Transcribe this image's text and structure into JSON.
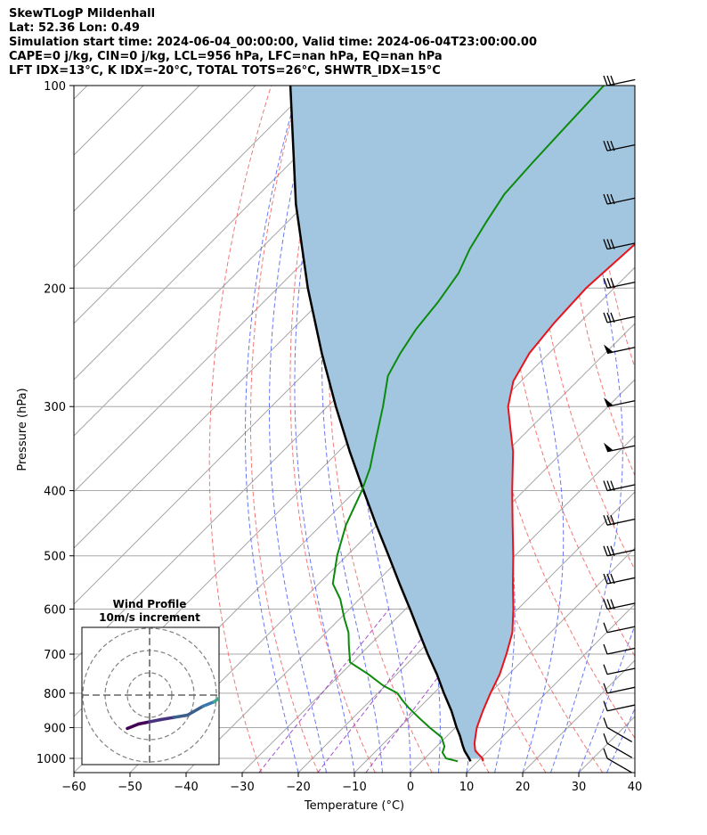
{
  "header": {
    "line1": "SkewTLogP Mildenhall",
    "line2": "Lat: 52.36   Lon: 0.49",
    "line3": "Simulation start time: 2024-06-04_00:00:00, Valid time: 2024-06-04T23:00:00.00",
    "line4": "CAPE=0 j/kg, CIN=0 j/kg, LCL=956 hPa, LFC=nan hPa, EQ=nan hPa",
    "line5": "LFT IDX=13°C, K IDX=-20°C, TOTAL TOTS=26°C, SHWTR_IDX=15°C"
  },
  "chart_data": {
    "type": "line",
    "title": "SkewTLogP Mildenhall",
    "xlabel": "Temperature (°C)",
    "ylabel": "Pressure (hPa)",
    "xlim": [
      -60,
      40
    ],
    "ylim": [
      1050,
      100
    ],
    "y_scale": "log",
    "grid": true,
    "x_ticks": [
      -60,
      -50,
      -40,
      -30,
      -20,
      -10,
      0,
      10,
      20,
      30,
      40
    ],
    "x_tick_labels": [
      "−60",
      "−50",
      "−40",
      "−30",
      "−20",
      "−10",
      "0",
      "10",
      "20",
      "30",
      "40"
    ],
    "y_ticks": [
      1000,
      900,
      800,
      700,
      600,
      500,
      400,
      300,
      200,
      100
    ],
    "y_tick_labels": [
      "1000",
      "900",
      "800",
      "700",
      "600",
      "500",
      "400",
      "300",
      "200",
      "100"
    ],
    "colors": {
      "temperature": "#e8141c",
      "dewpoint": "#0b8a0b",
      "parcel": "#000000",
      "cape_fill": "#a3c6e0",
      "dry_adiabat": "#f06060",
      "moist_adiabat": "#4f5ff2",
      "mixing_ratio": "#9b3fc4",
      "isotherm": "#a8a8a8"
    },
    "series": [
      {
        "key": "temperature",
        "points": [
          [
            1010,
            10.9
          ],
          [
            1000,
            10.3
          ],
          [
            975,
            7.7
          ],
          [
            950,
            6.2
          ],
          [
            925,
            5.0
          ],
          [
            900,
            3.8
          ],
          [
            850,
            1.9
          ],
          [
            800,
            0.1
          ],
          [
            750,
            -1.6
          ],
          [
            700,
            -4.0
          ],
          [
            650,
            -6.8
          ],
          [
            600,
            -10.8
          ],
          [
            550,
            -15.4
          ],
          [
            500,
            -20.3
          ],
          [
            450,
            -25.9
          ],
          [
            400,
            -32.1
          ],
          [
            350,
            -38.9
          ],
          [
            325,
            -43.2
          ],
          [
            300,
            -47.8
          ],
          [
            275,
            -51.4
          ],
          [
            250,
            -53.5
          ],
          [
            225,
            -54.5
          ],
          [
            200,
            -55.0
          ],
          [
            175,
            -54.2
          ],
          [
            150,
            -53.4
          ],
          [
            125,
            -53.0
          ],
          [
            110,
            -53.6
          ],
          [
            100,
            -54.5
          ]
        ]
      },
      {
        "key": "dewpoint",
        "points": [
          [
            1010,
            6.4
          ],
          [
            1000,
            3.8
          ],
          [
            980,
            2.1
          ],
          [
            960,
            1.4
          ],
          [
            930,
            -0.8
          ],
          [
            900,
            -4.6
          ],
          [
            870,
            -8.3
          ],
          [
            840,
            -12.0
          ],
          [
            820,
            -14.3
          ],
          [
            800,
            -16.5
          ],
          [
            780,
            -20.3
          ],
          [
            750,
            -25.0
          ],
          [
            720,
            -30.4
          ],
          [
            680,
            -33.6
          ],
          [
            650,
            -36.0
          ],
          [
            620,
            -39.2
          ],
          [
            580,
            -43.4
          ],
          [
            550,
            -47.5
          ],
          [
            500,
            -51.7
          ],
          [
            450,
            -55.6
          ],
          [
            400,
            -58.9
          ],
          [
            370,
            -61.5
          ],
          [
            340,
            -65.0
          ],
          [
            300,
            -70.1
          ],
          [
            270,
            -74.7
          ],
          [
            250,
            -76.5
          ],
          [
            230,
            -78.0
          ],
          [
            210,
            -78.9
          ],
          [
            190,
            -80.4
          ],
          [
            175,
            -82.7
          ],
          [
            160,
            -84.5
          ],
          [
            145,
            -86.3
          ],
          [
            130,
            -86.9
          ],
          [
            115,
            -87.4
          ],
          [
            100,
            -87.9
          ]
        ]
      },
      {
        "key": "parcel",
        "points": [
          [
            1010,
            8.7
          ],
          [
            1000,
            7.9
          ],
          [
            975,
            5.8
          ],
          [
            956,
            4.4
          ],
          [
            925,
            2.2
          ],
          [
            900,
            0.2
          ],
          [
            850,
            -3.7
          ],
          [
            800,
            -8.2
          ],
          [
            750,
            -12.8
          ],
          [
            700,
            -18.0
          ],
          [
            650,
            -23.4
          ],
          [
            600,
            -29.2
          ],
          [
            550,
            -35.6
          ],
          [
            500,
            -42.5
          ],
          [
            450,
            -50.2
          ],
          [
            400,
            -58.6
          ],
          [
            350,
            -68.0
          ],
          [
            300,
            -78.5
          ],
          [
            250,
            -90.5
          ],
          [
            200,
            -104.6
          ],
          [
            150,
            -121.7
          ],
          [
            100,
            -143.8
          ]
        ]
      }
    ],
    "wind_barb_pressures": [
      1000,
      950,
      900,
      850,
      800,
      750,
      700,
      650,
      600,
      550,
      500,
      450,
      400,
      350,
      300,
      250,
      225,
      200,
      175,
      150,
      125,
      100
    ],
    "hodograph": {
      "title": "Wind Profile",
      "subtitle": "10m/s increment",
      "ring_spacing_ms": 10,
      "rings": 3,
      "trace_u_v": [
        [
          -10,
          -15
        ],
        [
          -5,
          -13
        ],
        [
          0,
          -12
        ],
        [
          5,
          -11
        ],
        [
          11,
          -10
        ],
        [
          17,
          -9
        ],
        [
          24,
          -5
        ],
        [
          29,
          -3
        ],
        [
          33,
          0
        ],
        [
          37,
          3
        ],
        [
          41,
          5
        ],
        [
          42,
          7
        ],
        [
          41,
          9
        ],
        [
          39,
          10
        ],
        [
          37,
          10
        ]
      ],
      "trace_colors": [
        "#440154",
        "#47337e",
        "#3b5e8b",
        "#3a79ad",
        "#42a58f",
        "#6ccf5c",
        "#b8de2a",
        "#fde725"
      ]
    }
  }
}
